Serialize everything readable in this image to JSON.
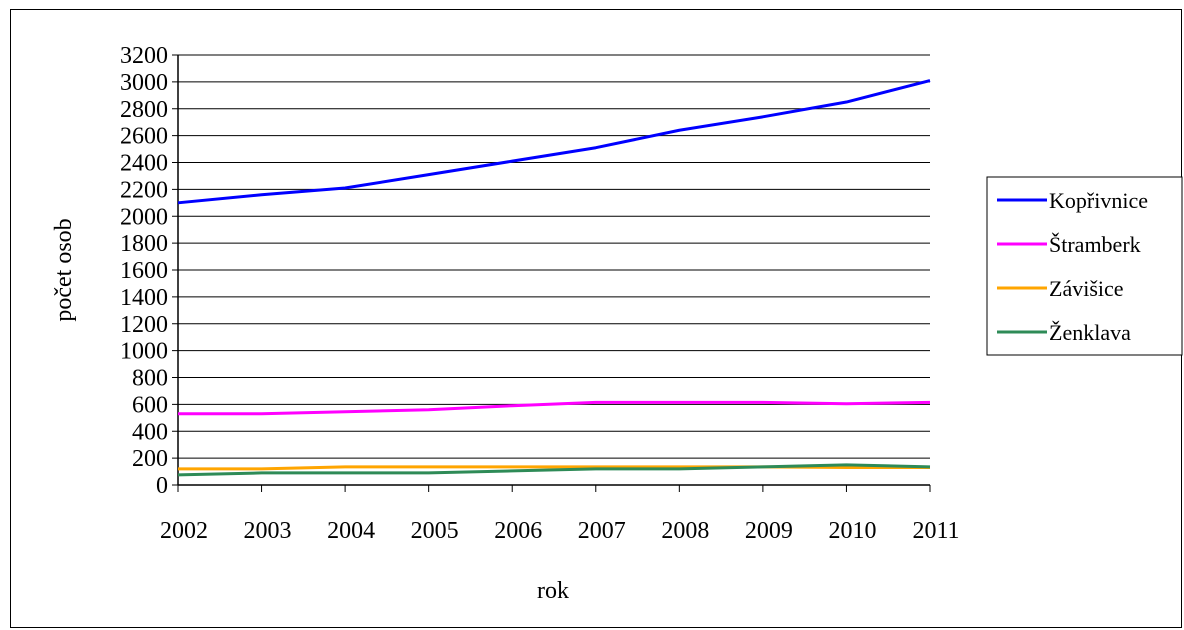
{
  "chart_data": {
    "type": "line",
    "title": "",
    "xlabel": "rok",
    "ylabel": "počet osob",
    "categories": [
      "2002",
      "2003",
      "2004",
      "2005",
      "2006",
      "2007",
      "2008",
      "2009",
      "2010",
      "2011"
    ],
    "ylim": [
      0,
      3200
    ],
    "yticks": [
      "0",
      "200",
      "400",
      "600",
      "800",
      "1000",
      "1200",
      "1400",
      "1600",
      "1800",
      "2000",
      "2200",
      "2400",
      "2600",
      "2800",
      "3000",
      "3200"
    ],
    "grid": true,
    "legend_position": "right",
    "series": [
      {
        "name": "Kopřivnice",
        "color": "#0000FF",
        "values": [
          2100,
          2160,
          2210,
          2310,
          2410,
          2510,
          2640,
          2740,
          2850,
          3010
        ]
      },
      {
        "name": "Štramberk",
        "color": "#FF00FF",
        "values": [
          530,
          530,
          545,
          560,
          590,
          615,
          615,
          615,
          605,
          615
        ]
      },
      {
        "name": "Závišice",
        "color": "#FFA500",
        "values": [
          120,
          120,
          135,
          135,
          135,
          135,
          135,
          135,
          130,
          130
        ]
      },
      {
        "name": "Ženklava",
        "color": "#2E8B57",
        "values": [
          75,
          90,
          90,
          90,
          105,
          120,
          120,
          135,
          150,
          135
        ]
      }
    ]
  }
}
